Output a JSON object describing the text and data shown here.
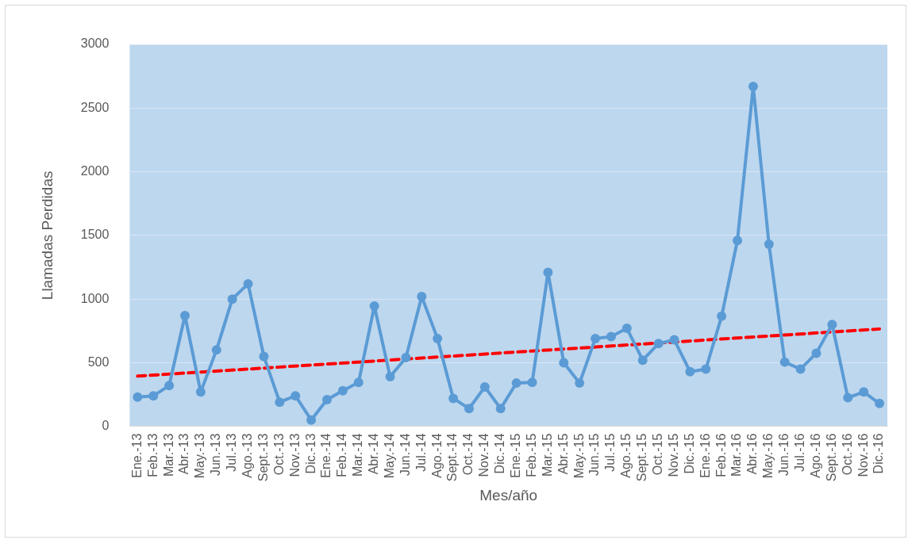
{
  "chart_data": {
    "type": "line",
    "xlabel": "Mes/año",
    "ylabel": "Llamadas Perdidas",
    "categories": [
      "Ene.-13",
      "Feb.-13",
      "Mar.-13",
      "Abr.-13",
      "May.-13",
      "Jun.-13",
      "Jul.-13",
      "Ago.-13",
      "Sept.-13",
      "Oct.-13",
      "Nov.-13",
      "Dic.-13",
      "Ene.-14",
      "Feb.-14",
      "Mar.-14",
      "Abr.-14",
      "May.-14",
      "Jun.-14",
      "Jul.-14",
      "Ago.-14",
      "Sept.-14",
      "Oct.-14",
      "Nov.-14",
      "Dic.-14",
      "Ene.-15",
      "Feb.-15",
      "Mar.-15",
      "Abr.-15",
      "May.-15",
      "Jun.-15",
      "Jul.-15",
      "Ago.-15",
      "Sept.-15",
      "Oct.-15",
      "Nov.-15",
      "Dic.-15",
      "Ene.-16",
      "Feb.-16",
      "Mar.-16",
      "Abr.-16",
      "May.-16",
      "Jun.-16",
      "Jul.-16",
      "Ago.-16",
      "Sept.-16",
      "Oct.-16",
      "Nov.-16",
      "Dic.-16"
    ],
    "series": [
      {
        "color": "#5b9bd5",
        "marker": "circle",
        "line_style": "solid",
        "values": [
          230,
          240,
          320,
          870,
          270,
          600,
          1000,
          1120,
          550,
          190,
          240,
          50,
          210,
          280,
          345,
          945,
          390,
          540,
          1020,
          690,
          220,
          140,
          310,
          140,
          340,
          345,
          1210,
          500,
          340,
          690,
          705,
          770,
          520,
          650,
          680,
          430,
          450,
          865,
          1460,
          2670,
          1430,
          505,
          450,
          575,
          800,
          225,
          270,
          180
        ]
      },
      {
        "type": "line",
        "color": "#ff0000",
        "marker": "none",
        "line_style": "dashed",
        "x": [
          "Ene.-13",
          "Dic.-16"
        ],
        "values": [
          395,
          765
        ]
      }
    ],
    "ylim": [
      0,
      3000
    ],
    "yticks": [
      0,
      500,
      1000,
      1500,
      2000,
      2500,
      3000
    ],
    "grid": "y",
    "legend": false
  }
}
